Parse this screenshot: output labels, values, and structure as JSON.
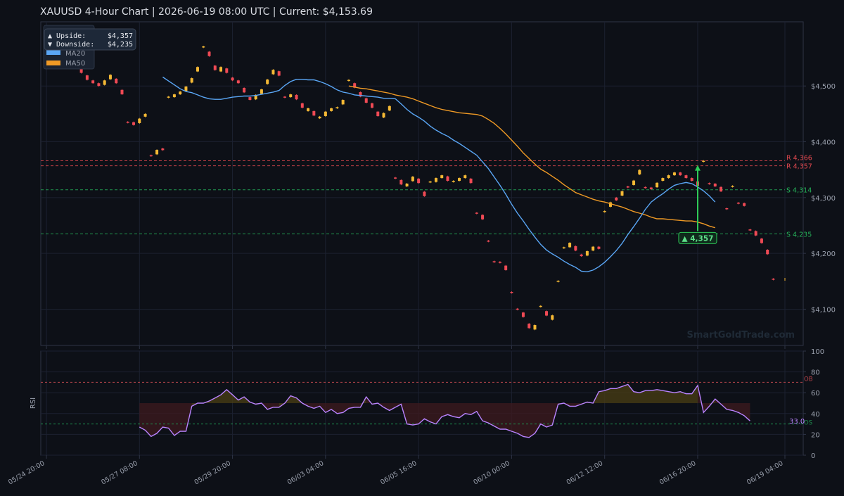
{
  "header": {
    "title": "XAUUSD  4-Hour Chart  |  2026-06-19 08:00 UTC  |  Current: $4,153.69"
  },
  "colors": {
    "background": "#0d1017",
    "panel": "#0d1017",
    "grid": "#1c2130",
    "axis": "#2e3446",
    "text": "#c9ccd4",
    "muted": "#9aa0ad",
    "ma20": "#5aa6f5",
    "ma50": "#f09a25",
    "up": "#f5b935",
    "down": "#ef4a55",
    "resistance": "#e0484f",
    "support": "#26b25a",
    "rsi": "#b983ff",
    "overbought": "#b8444b",
    "oversold": "#1f8a4d",
    "arrow": "#2ecc58"
  },
  "legend": {
    "upside_label": "▲ Upside:",
    "upside_value": "$4,357",
    "downside_label": "▼ Downside:",
    "downside_value": "$4,235",
    "ma20_label": "MA20",
    "ma50_label": "MA50"
  },
  "watermark": "SmartGoldTrade.com",
  "target_badge": "▲ 4,357",
  "rsi_value_label": "33.0",
  "chart_data": {
    "type": "candlestick",
    "price_panel": {
      "ylim": [
        4035,
        4615
      ],
      "yticks": [
        4100,
        4200,
        4300,
        4400,
        4500
      ],
      "ytick_labels": [
        "$4,100",
        "$4,200",
        "$4,300",
        "$4,400",
        "$4,500"
      ],
      "levels": [
        {
          "kind": "resistance",
          "label": "R 4,366",
          "value": 4366
        },
        {
          "kind": "resistance",
          "label": "R 4,357",
          "value": 4357
        },
        {
          "kind": "support",
          "label": "S 4,314",
          "value": 4314
        },
        {
          "kind": "support",
          "label": "S 4,235",
          "value": 4235
        }
      ],
      "target_arrow": {
        "from": 4240,
        "to": 4357,
        "x_bar": 112
      }
    },
    "x": {
      "n_bars": 128,
      "tick_bars": [
        0,
        16,
        32,
        48,
        64,
        80,
        96,
        112,
        127
      ],
      "tick_labels": [
        "05/24 20:00",
        "05/27 08:00",
        "05/29 20:00",
        "06/03 04:00",
        "06/05 16:00",
        "06/10 00:00",
        "06/12 12:00",
        "06/16 20:00",
        "06/19 04:00"
      ]
    },
    "closes": [
      4560,
      4555,
      4548,
      4545,
      4540,
      4535,
      4520,
      4510,
      4505,
      4500,
      4512,
      4520,
      4498,
      4480,
      4435,
      4430,
      4445,
      4450,
      4375,
      4388,
      4385,
      4480,
      4485,
      4490,
      4500,
      4520,
      4540,
      4570,
      4545,
      4520,
      4540,
      4515,
      4510,
      4505,
      4480,
      4475,
      4485,
      4495,
      4520,
      4530,
      4515,
      4480,
      4485,
      4475,
      4455,
      4460,
      4442,
      4445,
      4455,
      4460,
      4462,
      4480,
      4510,
      4492,
      4478,
      4470,
      4460,
      4440,
      4455,
      4465,
      4335,
      4320,
      4325,
      4342,
      4318,
      4295,
      4328,
      4335,
      4340,
      4328,
      4330,
      4335,
      4340,
      4320,
      4272,
      4258,
      4222,
      4185,
      4183,
      4165,
      4130,
      4100,
      4080,
      4060,
      4075,
      4105,
      4080,
      4090,
      4150,
      4210,
      4220,
      4198,
      4195,
      4205,
      4212,
      4208,
      4275,
      4300,
      4295,
      4320,
      4318,
      4335,
      4356,
      4318,
      4315,
      4330,
      4335,
      4340,
      4345,
      4340,
      4335,
      4330,
      4320,
      4365,
      4325,
      4320,
      4310,
      4280,
      4320,
      4290,
      4285,
      4242,
      4230,
      4215,
      4190,
      4153.69,
      4153.69,
      4153.69
    ],
    "ma20": {
      "start_bar": 20,
      "values": [
        4516,
        4509,
        4502,
        4495,
        4490,
        4488,
        4484,
        4480,
        4477,
        4476,
        4476,
        4478,
        4480,
        4481,
        4482,
        4482,
        4483,
        4485,
        4487,
        4489,
        4492,
        4501,
        4508,
        4512,
        4512,
        4511,
        4511,
        4508,
        4504,
        4499,
        4493,
        4489,
        4487,
        4484,
        4483,
        4482,
        4481,
        4480,
        4478,
        4478,
        4477,
        4468,
        4458,
        4450,
        4444,
        4437,
        4428,
        4421,
        4415,
        4410,
        4403,
        4397,
        4390,
        4383,
        4376,
        4364,
        4352,
        4337,
        4322,
        4306,
        4288,
        4272,
        4258,
        4243,
        4229,
        4216,
        4206,
        4199,
        4193,
        4186,
        4180,
        4175,
        4168,
        4167,
        4170,
        4176,
        4184,
        4194,
        4205,
        4218,
        4234,
        4248,
        4263,
        4279,
        4292,
        4300,
        4307,
        4315,
        4322,
        4325,
        4327,
        4325,
        4319,
        4312,
        4303,
        4292
      ]
    },
    "ma50": {
      "start_bar": 52,
      "values": [
        4500,
        4498,
        4496,
        4495,
        4493,
        4491,
        4489,
        4487,
        4484,
        4482,
        4480,
        4477,
        4473,
        4469,
        4465,
        4461,
        4458,
        4456,
        4454,
        4452,
        4451,
        4450,
        4449,
        4446,
        4440,
        4433,
        4424,
        4414,
        4403,
        4392,
        4380,
        4370,
        4360,
        4351,
        4345,
        4338,
        4331,
        4323,
        4316,
        4309,
        4305,
        4301,
        4297,
        4294,
        4292,
        4289,
        4286,
        4283,
        4279,
        4275,
        4272,
        4269,
        4265,
        4262,
        4262,
        4261,
        4260,
        4259,
        4258,
        4258,
        4256,
        4253,
        4249,
        4246
      ]
    },
    "rsi_panel": {
      "ylim": [
        0,
        100
      ],
      "yticks": [
        0,
        20,
        40,
        60,
        80,
        100
      ],
      "ylabel": "RSI",
      "overbought": {
        "value": 70,
        "label": "OB"
      },
      "oversold": {
        "value": 30,
        "label": "OS"
      },
      "start_bar": 16,
      "values": [
        27,
        24,
        18,
        21,
        27,
        26,
        19,
        23,
        23,
        47,
        50,
        50,
        52,
        55,
        58,
        63,
        58,
        53,
        56,
        51,
        49,
        50,
        44,
        46,
        46,
        50,
        57,
        55,
        50,
        47,
        45,
        47,
        41,
        44,
        40,
        41,
        45,
        46,
        46,
        56,
        49,
        50,
        46,
        43,
        46,
        49,
        30,
        29,
        30,
        35,
        32,
        30,
        37,
        39,
        37,
        36,
        40,
        39,
        42,
        33,
        31,
        28,
        25,
        25,
        23,
        21,
        18,
        17,
        21,
        30,
        27,
        29,
        49,
        50,
        47,
        47,
        49,
        51,
        50,
        61,
        62,
        64,
        64,
        66,
        68,
        61,
        60,
        62,
        62,
        63,
        62,
        61,
        60,
        61,
        59,
        59,
        67,
        41,
        47,
        54,
        49,
        44,
        43,
        41,
        38,
        33
      ]
    }
  }
}
